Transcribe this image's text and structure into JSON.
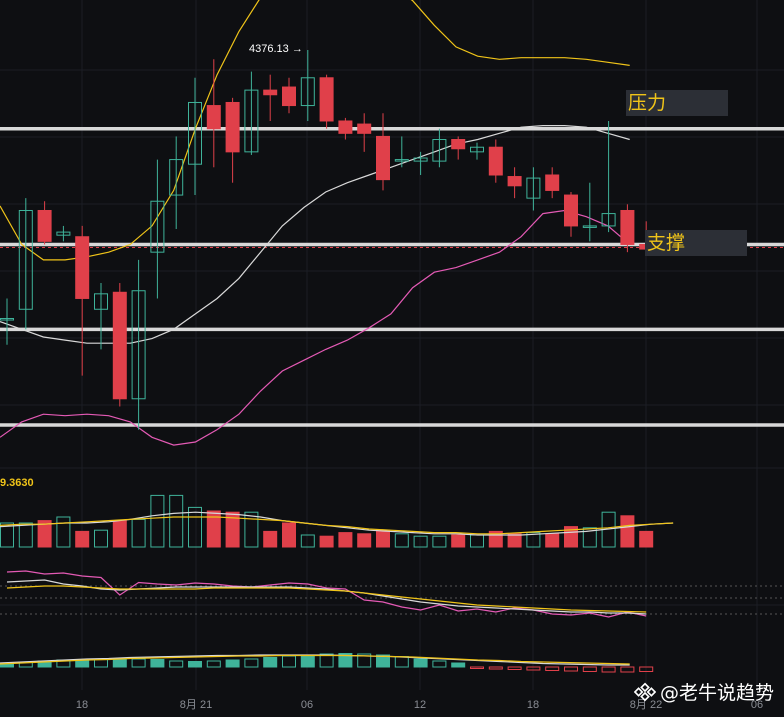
{
  "labels": {
    "pressure": "压力",
    "support": "支撑",
    "high": "4376.13",
    "high_arrow": "→",
    "volume_value": "9.3630",
    "watermark": "@老牛说趋势"
  },
  "colors": {
    "background": "#0e0f12",
    "up": "#3fb39a",
    "down": "#e0404a",
    "boll_upper": "#f0c419",
    "boll_mid": "#d9d9d9",
    "boll_lower": "#e45ab5",
    "level_line": "#d8d8d8",
    "label_text": "#f0c419",
    "label_box": "#2c2f36"
  },
  "chart_data": {
    "type": "candlestick",
    "x_ticks": [
      "18",
      "8月 21",
      "06",
      "12",
      "18",
      "8月 22",
      "06"
    ],
    "candles": [
      {
        "o": 4202,
        "h": 4215,
        "l": 4185,
        "c": 4202
      },
      {
        "o": 4208,
        "h": 4280,
        "l": 4195,
        "c": 4272
      },
      {
        "o": 4272,
        "h": 4278,
        "l": 4250,
        "c": 4252
      },
      {
        "o": 4256,
        "h": 4262,
        "l": 4252,
        "c": 4258
      },
      {
        "o": 4255,
        "h": 4262,
        "l": 4165,
        "c": 4215
      },
      {
        "o": 4208,
        "h": 4225,
        "l": 4182,
        "c": 4218
      },
      {
        "o": 4219,
        "h": 4225,
        "l": 4145,
        "c": 4150
      },
      {
        "o": 4150,
        "h": 4240,
        "l": 4130,
        "c": 4220
      },
      {
        "o": 4245,
        "h": 4305,
        "l": 4215,
        "c": 4278
      },
      {
        "o": 4282,
        "h": 4320,
        "l": 4260,
        "c": 4305
      },
      {
        "o": 4302,
        "h": 4358,
        "l": 4282,
        "c": 4342
      },
      {
        "o": 4340,
        "h": 4370,
        "l": 4300,
        "c": 4325
      },
      {
        "o": 4342,
        "h": 4345,
        "l": 4290,
        "c": 4310
      },
      {
        "o": 4310,
        "h": 4362,
        "l": 4308,
        "c": 4350
      },
      {
        "o": 4350,
        "h": 4360,
        "l": 4330,
        "c": 4347
      },
      {
        "o": 4352,
        "h": 4358,
        "l": 4335,
        "c": 4340
      },
      {
        "o": 4340,
        "h": 4376,
        "l": 4330,
        "c": 4358
      },
      {
        "o": 4358,
        "h": 4360,
        "l": 4325,
        "c": 4330
      },
      {
        "o": 4330,
        "h": 4332,
        "l": 4318,
        "c": 4322
      },
      {
        "o": 4328,
        "h": 4335,
        "l": 4310,
        "c": 4322
      },
      {
        "o": 4320,
        "h": 4335,
        "l": 4285,
        "c": 4292
      },
      {
        "o": 4305,
        "h": 4320,
        "l": 4300,
        "c": 4305
      },
      {
        "o": 4304,
        "h": 4310,
        "l": 4295,
        "c": 4306
      },
      {
        "o": 4304,
        "h": 4325,
        "l": 4300,
        "c": 4318
      },
      {
        "o": 4318,
        "h": 4320,
        "l": 4305,
        "c": 4312
      },
      {
        "o": 4310,
        "h": 4316,
        "l": 4305,
        "c": 4313
      },
      {
        "o": 4313,
        "h": 4318,
        "l": 4290,
        "c": 4295
      },
      {
        "o": 4294,
        "h": 4300,
        "l": 4280,
        "c": 4288
      },
      {
        "o": 4280,
        "h": 4300,
        "l": 4272,
        "c": 4293
      },
      {
        "o": 4295,
        "h": 4300,
        "l": 4280,
        "c": 4285
      },
      {
        "o": 4282,
        "h": 4284,
        "l": 4255,
        "c": 4262
      },
      {
        "o": 4262,
        "h": 4290,
        "l": 4252,
        "c": 4262
      },
      {
        "o": 4262,
        "h": 4330,
        "l": 4258,
        "c": 4270
      },
      {
        "o": 4272,
        "h": 4276,
        "l": 4245,
        "c": 4250
      },
      {
        "o": 4250,
        "h": 4265,
        "l": 4246,
        "c": 4247
      }
    ],
    "bollinger": {
      "upper": [
        4275,
        4250,
        4240,
        4240,
        4242,
        4245,
        4250,
        4262,
        4285,
        4325,
        4360,
        4388,
        4410,
        4418,
        4418,
        4418,
        4420,
        4420,
        4418,
        4408,
        4392,
        4378,
        4372,
        4370,
        4371,
        4371,
        4371,
        4370,
        4368,
        4366
      ],
      "mid": [
        4200,
        4195,
        4190,
        4188,
        4186,
        4186,
        4186,
        4189,
        4195,
        4205,
        4215,
        4228,
        4245,
        4262,
        4274,
        4284,
        4290,
        4295,
        4300,
        4305,
        4310,
        4315,
        4318,
        4322,
        4326,
        4327,
        4327,
        4326,
        4322,
        4318
      ],
      "lower": [
        4125,
        4135,
        4140,
        4139,
        4140,
        4139,
        4135,
        4125,
        4120,
        4122,
        4130,
        4140,
        4155,
        4168,
        4175,
        4182,
        4188,
        4196,
        4205,
        4222,
        4232,
        4235,
        4240,
        4245,
        4255,
        4270,
        4272,
        4268,
        4262,
        4250
      ]
    },
    "levels": [
      {
        "price": 4325,
        "style": "solid"
      },
      {
        "price": 4250,
        "style": "solid"
      },
      {
        "price": 4248,
        "style": "dashed"
      },
      {
        "price": 4195,
        "style": "solid"
      },
      {
        "price": 4133,
        "style": "solid"
      }
    ],
    "volume": {
      "values": [
        2,
        2,
        2.2,
        2.5,
        1.3,
        1.4,
        2.2,
        2.3,
        4.3,
        4.3,
        3.3,
        3.0,
        2.9,
        2.9,
        1.3,
        2.0,
        1.0,
        0.9,
        1.2,
        1.1,
        1.4,
        1.1,
        0.9,
        0.9,
        1.0,
        1.0,
        1.3,
        1.1,
        1.2,
        1.1,
        1.7,
        1.6,
        2.9,
        2.6,
        1.3
      ],
      "ma1": [
        1.7,
        1.8,
        1.9,
        2.0,
        2.0,
        2.1,
        2.3,
        2.6,
        2.8,
        2.9,
        2.8,
        2.7,
        2.5,
        2.2,
        2.0,
        1.8,
        1.6,
        1.4,
        1.3,
        1.2,
        1.1,
        1.1,
        1.0,
        1.0,
        1.0,
        1.1,
        1.2,
        1.3,
        1.5,
        1.7,
        1.9,
        2.0
      ],
      "ma2": [
        1.8,
        1.9,
        1.9,
        2.0,
        2.1,
        2.2,
        2.3,
        2.4,
        2.5,
        2.5,
        2.5,
        2.4,
        2.3,
        2.2,
        2.0,
        1.8,
        1.7,
        1.5,
        1.4,
        1.3,
        1.2,
        1.2,
        1.1,
        1.1,
        1.2,
        1.3,
        1.4,
        1.5,
        1.6,
        1.8,
        1.9,
        2.0
      ]
    },
    "macd": {
      "hist": [
        0.8,
        1.0,
        1.2,
        1.4,
        1.5,
        1.5,
        1.7,
        1.6,
        1.5,
        1.2,
        1.1,
        1.2,
        1.4,
        1.6,
        1.9,
        2.2,
        2.4,
        2.6,
        2.7,
        2.6,
        2.4,
        2.1,
        1.6,
        1.2,
        0.8,
        -0.3,
        -0.4,
        -0.5,
        -0.6,
        -0.7,
        -0.8,
        -0.9,
        -1.0,
        -1.0,
        -0.9
      ],
      "dif": [
        0.8,
        1.0,
        1.2,
        1.4,
        1.6,
        1.7,
        1.9,
        2.0,
        2.1,
        2.2,
        2.3,
        2.3,
        2.4,
        2.4,
        2.4,
        2.4,
        2.3,
        2.2,
        2.1,
        1.9,
        1.7,
        1.5,
        1.3,
        1.1,
        0.9,
        0.7,
        0.6,
        0.5,
        0.4,
        0.4
      ],
      "dea": [
        0.6,
        0.8,
        1.0,
        1.2,
        1.4,
        1.5,
        1.7,
        1.8,
        1.9,
        2.0,
        2.1,
        2.2,
        2.2,
        2.3,
        2.3,
        2.3,
        2.3,
        2.2,
        2.1,
        2.0,
        1.8,
        1.6,
        1.4,
        1.3,
        1.1,
        1.0,
        0.9,
        0.8,
        0.7,
        0.6
      ]
    }
  }
}
